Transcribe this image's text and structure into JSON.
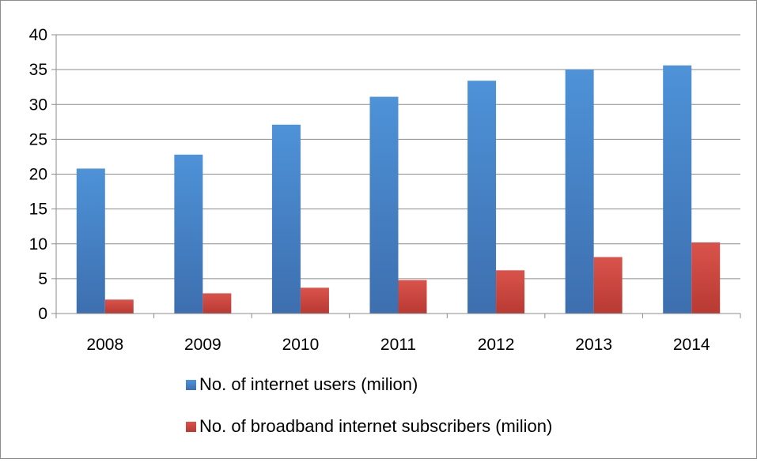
{
  "chart_data": {
    "type": "bar",
    "categories": [
      "2008",
      "2009",
      "2010",
      "2011",
      "2012",
      "2013",
      "2014"
    ],
    "series": [
      {
        "name": "No. of internet users (milion)",
        "color": "#4a86c8",
        "values": [
          20.8,
          22.8,
          27.1,
          31.1,
          33.4,
          35.0,
          35.6
        ]
      },
      {
        "name": "No. of broadband internet subscribers (milion)",
        "color": "#cc4740",
        "values": [
          2.0,
          2.9,
          3.7,
          4.8,
          6.2,
          8.1,
          10.2
        ]
      }
    ],
    "y_ticks": [
      "0",
      "5",
      "10",
      "15",
      "20",
      "25",
      "30",
      "35",
      "40"
    ],
    "ylim": [
      0,
      40
    ],
    "grid": true,
    "legend_position": "bottom"
  }
}
